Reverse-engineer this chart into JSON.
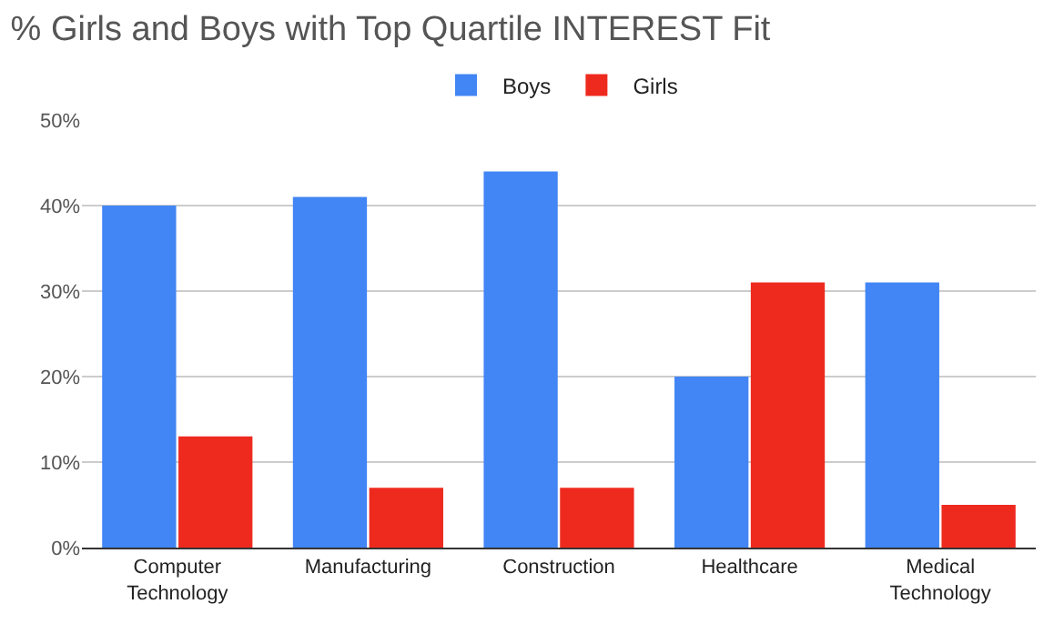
{
  "chart_data": {
    "type": "bar",
    "title": "% Girls and Boys with Top Quartile INTEREST Fit",
    "categories": [
      "Computer Technology",
      "Manufacturing",
      "Construction",
      "Healthcare",
      "Medical Technology"
    ],
    "series": [
      {
        "name": "Boys",
        "color": "#4285f4",
        "values": [
          40,
          41,
          44,
          20,
          31
        ]
      },
      {
        "name": "Girls",
        "color": "#ee2a1f",
        "values": [
          13,
          7,
          7,
          31,
          5
        ]
      }
    ],
    "ylim": [
      0,
      50
    ],
    "yticks": [
      {
        "value": 0,
        "label": "0%"
      },
      {
        "value": 10,
        "label": "10%"
      },
      {
        "value": 20,
        "label": "20%"
      },
      {
        "value": 30,
        "label": "30%"
      },
      {
        "value": 40,
        "label": "40%"
      },
      {
        "value": 50,
        "label": "50%"
      }
    ],
    "grid": "y",
    "legend": "top"
  }
}
